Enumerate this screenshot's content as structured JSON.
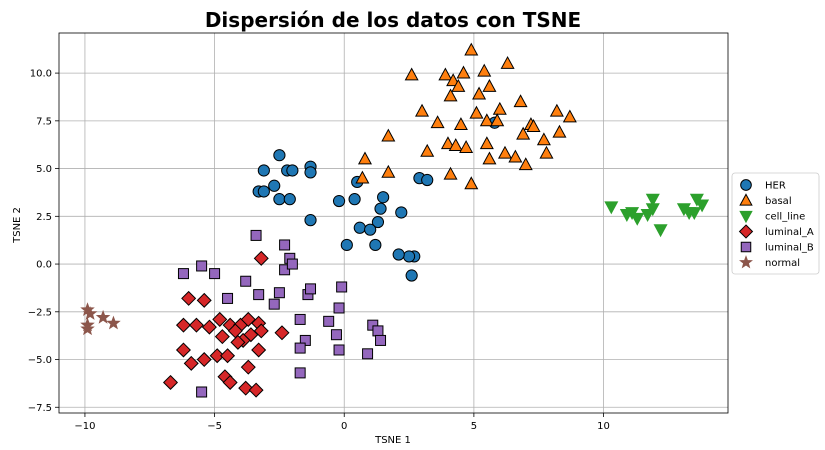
{
  "chart_data": {
    "type": "scatter",
    "title": "Dispersión de los datos con TSNE",
    "xlabel": "TSNE 1",
    "ylabel": "TSNE 2",
    "xlim": [
      -11,
      14.8
    ],
    "ylim": [
      -7.8,
      12.1
    ],
    "xticks": [
      -10,
      -5,
      0,
      5,
      10
    ],
    "yticks": [
      -7.5,
      -5.0,
      -2.5,
      0.0,
      2.5,
      5.0,
      7.5,
      10.0
    ],
    "xtick_labels": [
      "−10",
      "−5",
      "0",
      "5",
      "10"
    ],
    "ytick_labels": [
      "−7.5",
      "−5.0",
      "−2.5",
      "0.0",
      "2.5",
      "5.0",
      "7.5",
      "10.0"
    ],
    "grid": true,
    "legend_position": "center-right outside",
    "series": [
      {
        "name": "HER",
        "marker": "circle",
        "color": "#1f77b4",
        "x": [
          -2.5,
          -2.2,
          -1.3,
          -1.3,
          -3.1,
          -2.0,
          -2.7,
          -3.3,
          -3.1,
          -2.5,
          -2.1,
          -1.3,
          -0.2,
          0.5,
          0.4,
          1.5,
          1.4,
          2.2,
          1.3,
          0.6,
          1.0,
          1.2,
          2.9,
          3.2,
          2.7,
          2.5,
          0.1,
          2.1,
          2.6,
          5.8
        ],
        "y": [
          5.7,
          4.9,
          5.1,
          4.8,
          4.9,
          4.9,
          4.1,
          3.8,
          3.8,
          3.4,
          3.4,
          2.3,
          3.3,
          4.3,
          3.4,
          3.5,
          2.9,
          2.7,
          2.2,
          1.9,
          1.8,
          1.0,
          4.5,
          4.4,
          0.4,
          0.4,
          1.0,
          0.5,
          -0.6,
          7.4
        ]
      },
      {
        "name": "basal",
        "marker": "triangle-up",
        "color": "#ff7f0e",
        "x": [
          4.9,
          6.3,
          2.6,
          3.9,
          4.2,
          4.6,
          5.4,
          4.4,
          5.6,
          4.1,
          5.2,
          6.0,
          6.8,
          5.5,
          3.0,
          3.6,
          4.5,
          5.1,
          5.9,
          7.2,
          8.2,
          8.7,
          4.0,
          4.3,
          4.7,
          5.5,
          6.2,
          6.6,
          5.6,
          7.0,
          1.7,
          3.2,
          0.8,
          1.7,
          0.7,
          4.1,
          4.9,
          6.9,
          7.7,
          8.3,
          7.8,
          7.3
        ],
        "y": [
          11.2,
          10.5,
          9.9,
          9.9,
          9.6,
          10.0,
          10.1,
          9.3,
          9.3,
          8.8,
          8.9,
          8.1,
          8.5,
          7.5,
          8.0,
          7.4,
          7.3,
          7.9,
          7.5,
          7.3,
          8.0,
          7.7,
          6.3,
          6.2,
          6.1,
          6.3,
          5.8,
          5.6,
          5.5,
          5.2,
          6.7,
          5.9,
          5.5,
          4.8,
          4.5,
          4.7,
          4.2,
          6.8,
          6.5,
          6.9,
          5.8,
          7.2
        ]
      },
      {
        "name": "cell_line",
        "marker": "triangle-down",
        "color": "#2ca02c",
        "x": [
          10.3,
          10.9,
          11.1,
          11.3,
          11.7,
          11.9,
          11.9,
          12.2,
          13.1,
          13.3,
          13.5,
          13.6,
          13.8
        ],
        "y": [
          3.0,
          2.6,
          2.7,
          2.4,
          2.6,
          3.4,
          2.9,
          1.8,
          2.9,
          2.7,
          2.7,
          3.4,
          3.1
        ]
      },
      {
        "name": "luminal_A",
        "marker": "diamond",
        "color": "#d62728",
        "x": [
          -3.2,
          -6.0,
          -5.4,
          -6.2,
          -5.7,
          -5.2,
          -4.8,
          -4.4,
          -4.0,
          -3.7,
          -3.3,
          -3.6,
          -3.2,
          -4.2,
          -3.9,
          -2.4,
          -6.2,
          -5.9,
          -5.4,
          -4.9,
          -4.5,
          -3.7,
          -3.3,
          -6.7,
          -4.6,
          -4.4,
          -3.8,
          -3.4,
          -4.1,
          -4.7
        ],
        "y": [
          0.3,
          -1.8,
          -1.9,
          -3.2,
          -3.2,
          -3.3,
          -2.9,
          -3.2,
          -3.2,
          -2.9,
          -3.1,
          -3.7,
          -3.5,
          -3.5,
          -4.0,
          -3.6,
          -4.5,
          -5.2,
          -5.0,
          -4.8,
          -4.8,
          -5.4,
          -4.5,
          -6.2,
          -5.9,
          -6.2,
          -6.5,
          -6.6,
          -4.1,
          -3.8
        ]
      },
      {
        "name": "luminal_B",
        "marker": "square",
        "color": "#9467bd",
        "x": [
          -3.4,
          -2.3,
          -2.1,
          -2.3,
          -2.0,
          -6.2,
          -5.5,
          -5.0,
          -3.8,
          -4.5,
          -3.3,
          -2.5,
          -1.4,
          -1.3,
          -2.7,
          -0.1,
          -1.7,
          -0.6,
          -0.3,
          -0.2,
          -1.5,
          -1.7,
          1.1,
          1.3,
          1.4,
          0.9,
          -0.2,
          -1.7,
          -5.5
        ],
        "y": [
          1.5,
          1.0,
          0.3,
          -0.3,
          0.0,
          -0.5,
          -0.1,
          -0.5,
          -0.9,
          -1.8,
          -1.6,
          -1.5,
          -1.6,
          -1.3,
          -2.1,
          -1.2,
          -2.9,
          -3.0,
          -3.7,
          -2.3,
          -4.0,
          -4.4,
          -3.2,
          -3.5,
          -4.0,
          -4.7,
          -4.5,
          -5.7,
          -6.7
        ]
      },
      {
        "name": "normal",
        "marker": "star",
        "color": "#8c564b",
        "x": [
          -9.9,
          -9.8,
          -9.3,
          -8.9,
          -9.9,
          -9.9
        ],
        "y": [
          -2.4,
          -2.6,
          -2.8,
          -3.1,
          -3.2,
          -3.4
        ]
      }
    ]
  }
}
